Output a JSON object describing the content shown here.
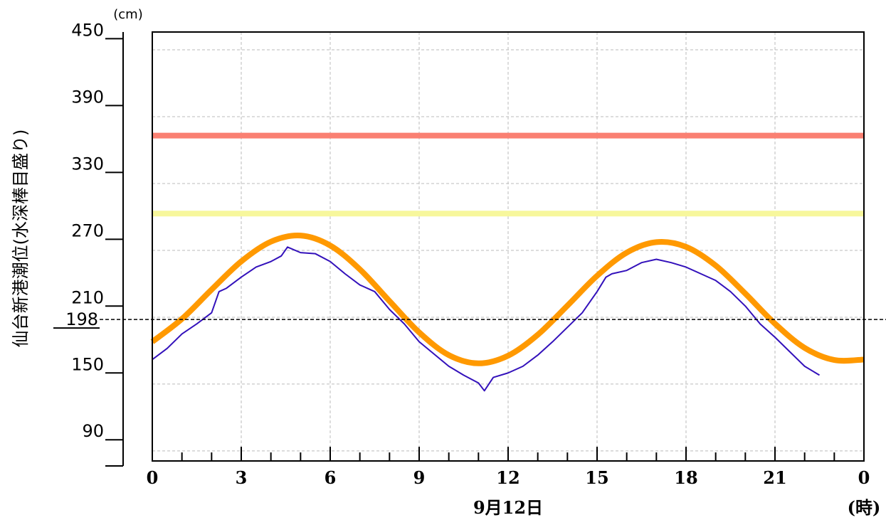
{
  "chart_data": {
    "type": "line",
    "y_unit": "(cm)",
    "y_label": "仙台新港潮位(水深棒目盛り)",
    "x_label": "9月12日",
    "x_unit": "(時)",
    "xlim": [
      0,
      24
    ],
    "xticks": [
      0,
      3,
      6,
      9,
      12,
      15,
      18,
      21,
      {
        "value": 24,
        "label": "0"
      }
    ],
    "xminorticks": [
      1,
      2,
      4,
      5,
      7,
      8,
      10,
      11,
      13,
      14,
      16,
      17,
      19,
      20,
      22,
      23
    ],
    "ylim": [
      71,
      456
    ],
    "yticks": [
      90,
      150,
      210,
      270,
      330,
      390,
      450
    ],
    "ygrid": [
      80,
      140,
      200,
      260,
      320,
      380,
      440
    ],
    "grid": true,
    "hlines": [
      {
        "value": 363,
        "color": "#fa8072"
      },
      {
        "value": 293,
        "color": "#f7f79c"
      }
    ],
    "reference": {
      "value": 198
    },
    "series": [
      {
        "color": "#ff9900",
        "x": [
          0,
          1,
          2,
          3,
          4,
          5,
          6,
          7,
          8,
          9,
          10,
          11,
          12,
          13,
          14,
          15,
          16,
          17,
          18,
          19,
          20,
          21,
          22,
          23,
          24
        ],
        "values": [
          178,
          198.5,
          224.8,
          250.1,
          267.8,
          273.3,
          264.4,
          243,
          214.5,
          186.4,
          166,
          158.6,
          165.5,
          184.3,
          210.4,
          237.2,
          258,
          267.4,
          263.2,
          246.4,
          221.2,
          194.2,
          172.5,
          161.6,
          162
        ]
      },
      {
        "color": "#3311bb",
        "x": [
          0,
          0.5,
          1,
          1.5,
          2,
          2.25,
          2.5,
          3,
          3.5,
          4,
          4.35,
          4.56,
          5,
          5.5,
          6,
          6.5,
          7,
          7.5,
          8,
          8.5,
          9,
          9.5,
          10,
          10.5,
          11,
          11.2,
          11.5,
          12,
          12.5,
          13,
          13.5,
          14,
          14.5,
          15,
          15.3,
          15.5,
          16,
          16.5,
          17,
          17.5,
          18,
          18.5,
          19,
          19.5,
          20,
          20.5,
          21,
          21.5,
          22,
          22.5
        ],
        "values": [
          162,
          172,
          185,
          194,
          204,
          223,
          226,
          236,
          245,
          250,
          255,
          263,
          258,
          257,
          250,
          239,
          229,
          223,
          207,
          194,
          178,
          167,
          156,
          148,
          141,
          134,
          146,
          150,
          156,
          166,
          178,
          191,
          204,
          223,
          236,
          239,
          242,
          249,
          252,
          249,
          245,
          239,
          233,
          223,
          210,
          194,
          182,
          169,
          156,
          148
        ]
      }
    ]
  }
}
